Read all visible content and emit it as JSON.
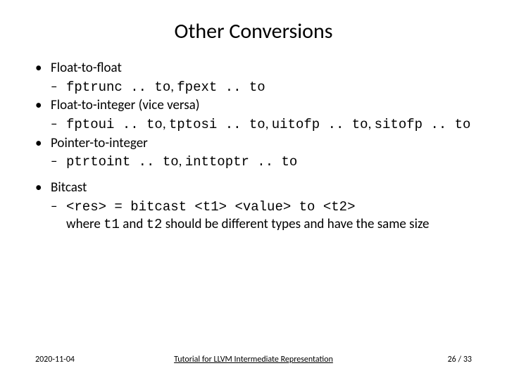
{
  "title": "Other Conversions",
  "bullets": {
    "b1": "Float-to-float",
    "b1s1_code": "fptrunc .. to",
    "b1s1_sep": ", ",
    "b1s1_code2": "fpext .. to",
    "b2": "Float-to-integer (vice versa)",
    "b2s1_code": "fptoui .. to",
    "b2s1_sep": ", ",
    "b2s1_code2": "tptosi .. to",
    "b2s1_sep2": ", ",
    "b2s1_code3": "uitofp .. to",
    "b2s1_sep3": ", ",
    "b2s1_code4": "sitofp .. to",
    "b3": "Pointer-to-integer",
    "b3s1_code": "ptrtoint .. to",
    "b3s1_sep": ", ",
    "b3s1_code2": "inttoptr .. to",
    "b4": "Bitcast",
    "b4s1_code": "<res> = bitcast <t1> <value> to <t2>",
    "b4s1_txt1": "where ",
    "b4s1_t1": "t1",
    "b4s1_txt2": " and ",
    "b4s1_t2": "t2",
    "b4s1_txt3": " should be different types and have the same size"
  },
  "footer": {
    "date": "2020-11-04",
    "title": "Tutorial for LLVM Intermediate Representation",
    "page_current": "26",
    "page_sep": " / ",
    "page_total": "33"
  }
}
